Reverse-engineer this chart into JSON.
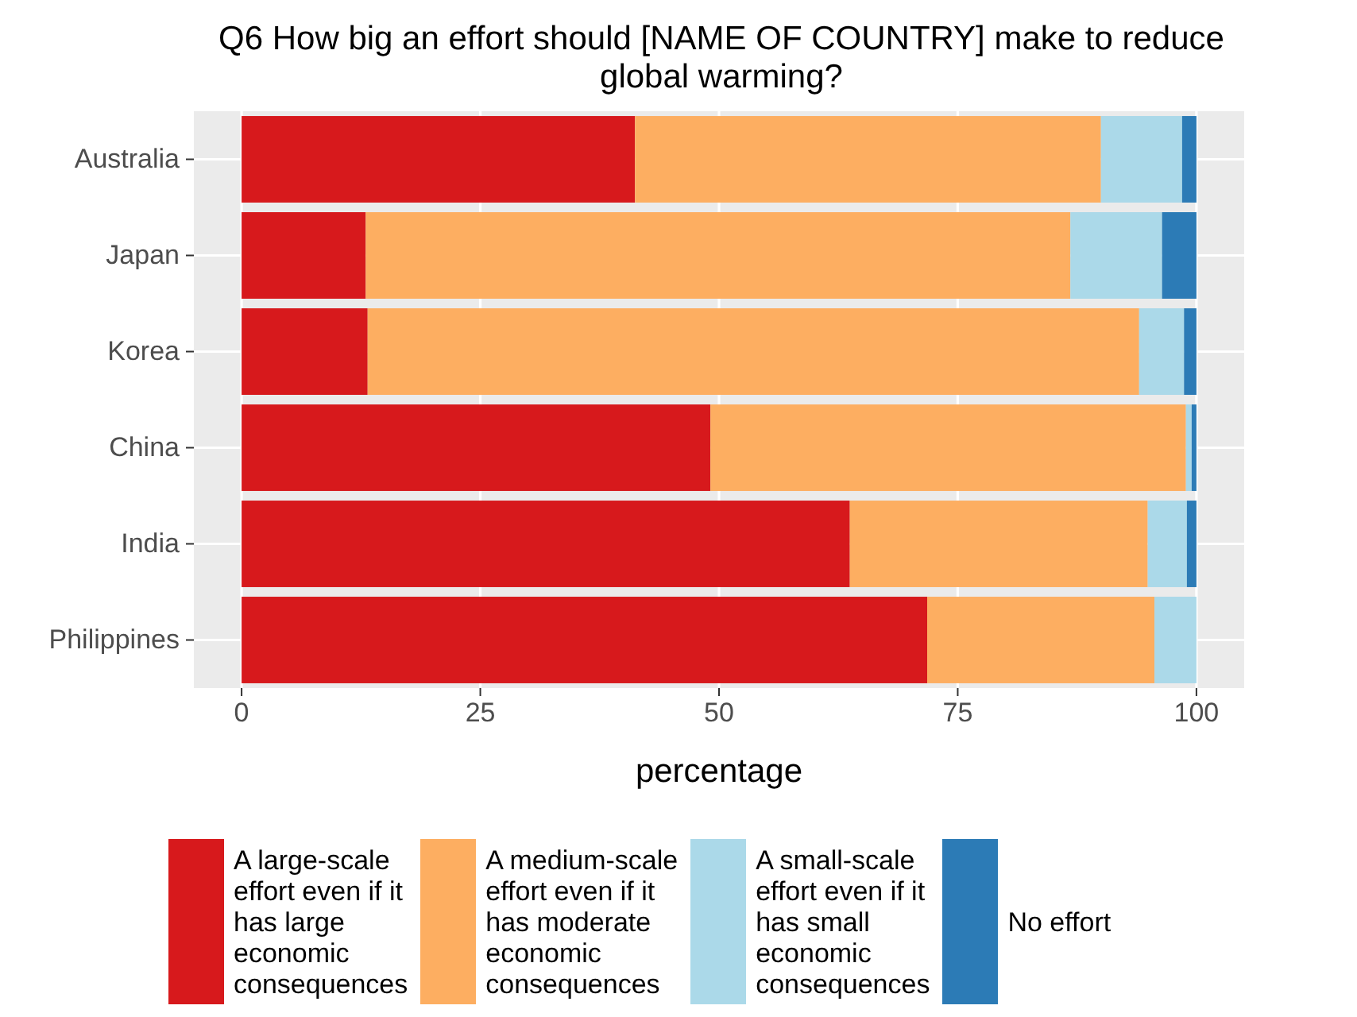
{
  "chart_data": {
    "type": "bar",
    "orientation": "horizontal",
    "stacked": true,
    "title": "Q6 How big an effort should [NAME OF COUNTRY] make to reduce global warming?",
    "xlabel": "percentage",
    "categories": [
      "Australia",
      "Japan",
      "Korea",
      "China",
      "India",
      "Philippines"
    ],
    "series": [
      {
        "name": "A large-scale effort even if it has large economic consequences",
        "color": "#d7191c",
        "values": [
          41.2,
          13.0,
          13.2,
          49.1,
          63.7,
          71.8
        ]
      },
      {
        "name": "A medium-scale effort even if it has moderate economic consequences",
        "color": "#fdae61",
        "values": [
          48.8,
          73.8,
          80.8,
          49.8,
          31.2,
          23.8
        ]
      },
      {
        "name": "A small-scale effort even if it has small economic consequences",
        "color": "#abd9e9",
        "values": [
          8.5,
          9.6,
          4.7,
          0.6,
          4.1,
          4.4
        ]
      },
      {
        "name": "No effort",
        "color": "#2c7bb6",
        "values": [
          1.5,
          3.6,
          1.3,
          0.5,
          1.0,
          0
        ]
      }
    ],
    "xlim": [
      -5,
      105
    ],
    "xticks": [
      0,
      25,
      50,
      75,
      100
    ],
    "grid": true,
    "legend": "bottom"
  }
}
